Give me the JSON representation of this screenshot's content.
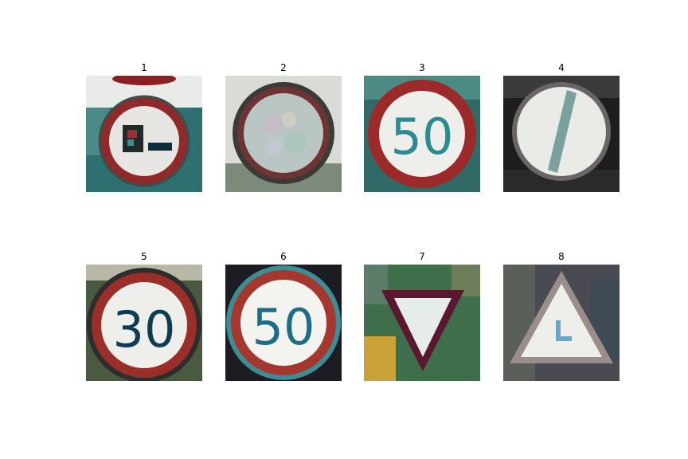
{
  "figure": {
    "panels": [
      {
        "title": "1",
        "sign": "no-trucks-overtaking"
      },
      {
        "title": "2",
        "sign": "no-vehicles"
      },
      {
        "title": "3",
        "sign": "speed-limit",
        "sign_text": "50"
      },
      {
        "title": "4",
        "sign": "end-of-restriction"
      },
      {
        "title": "5",
        "sign": "speed-limit",
        "sign_text": "30"
      },
      {
        "title": "6",
        "sign": "speed-limit",
        "sign_text": "50"
      },
      {
        "title": "7",
        "sign": "yield"
      },
      {
        "title": "8",
        "sign": "warning-triangle"
      }
    ],
    "colors": {
      "sign_red": "#9c2a2a",
      "sign_white": "#f2f2ee",
      "digit_teal": "#2b8b93",
      "digit_dark": "#0e3d52",
      "bg_teal": "#2e6f6f"
    }
  }
}
